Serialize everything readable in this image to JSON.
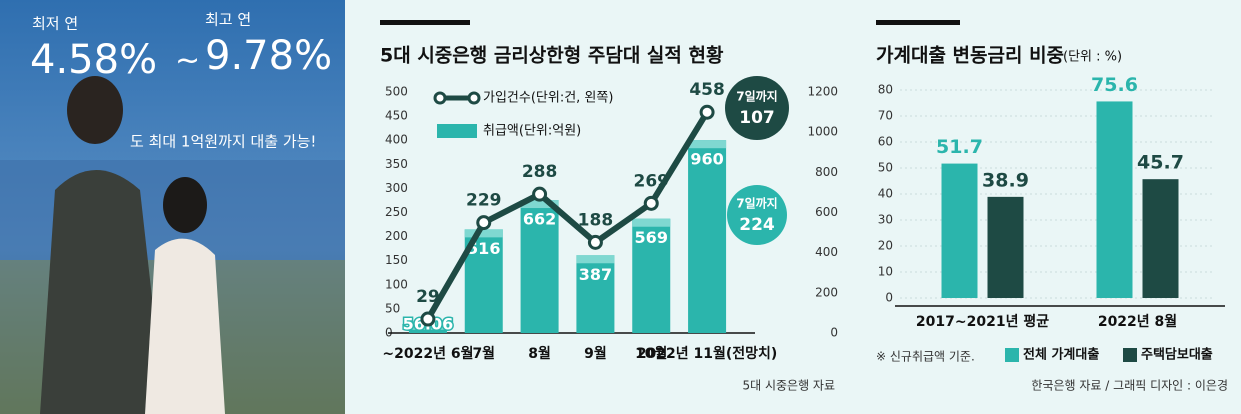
{
  "photo": {
    "texts": [
      "최저 연",
      "4.58%",
      "~",
      "최고 연",
      "9.78%",
      "도 최대 1억원까지 대출 가능!"
    ]
  },
  "chart_data": [
    {
      "type": "combo",
      "title": "5대 시중은행 금리상한형 주담대 실적 현황",
      "source": "5대 시중은행 자료",
      "categories": [
        "~2022년 6월",
        "7월",
        "8월",
        "9월",
        "10월",
        "2022년 11월(전망치)"
      ],
      "series": [
        {
          "name": "가입건수(단위:건, 왼쪽)",
          "type": "line",
          "color": "#1e4a44",
          "values": [
            29,
            229,
            288,
            188,
            269,
            458
          ]
        },
        {
          "name": "취급액(단위:억원)",
          "type": "bar",
          "axis": "y2",
          "color": "#2bb5ac",
          "values": [
            56.06,
            516,
            662,
            387,
            569,
            960
          ]
        }
      ],
      "annotations": [
        {
          "text": "7일까지",
          "value": 107
        },
        {
          "text": "7일까지",
          "value": 224
        }
      ],
      "ylim": [
        0,
        500
      ],
      "yticks": [
        0,
        50,
        100,
        150,
        200,
        250,
        300,
        350,
        400,
        450,
        500
      ],
      "y2lim": [
        0,
        1200
      ],
      "y2ticks": [
        0,
        200,
        400,
        600,
        800,
        1000,
        1200
      ],
      "grid": false,
      "legend": "top-left"
    },
    {
      "type": "bar",
      "title": "가계대출 변동금리 비중",
      "subtitle": "(단위 : %)",
      "note": "※ 신규취급액 기준.",
      "source": "한국은행 자료 / 그래픽 디자인 : 이은경",
      "categories": [
        "2017~2021년 평균",
        "2022년 8월"
      ],
      "series": [
        {
          "name": "전체 가계대출",
          "color": "#2bb5ac",
          "values": [
            51.7,
            75.6
          ]
        },
        {
          "name": "주택담보대출",
          "color": "#1e4a44",
          "values": [
            38.9,
            45.7
          ]
        }
      ],
      "ylim": [
        0,
        80
      ],
      "yticks": [
        0,
        10,
        20,
        30,
        40,
        50,
        60,
        70,
        80
      ],
      "grid": true,
      "legend": "bottom"
    }
  ]
}
